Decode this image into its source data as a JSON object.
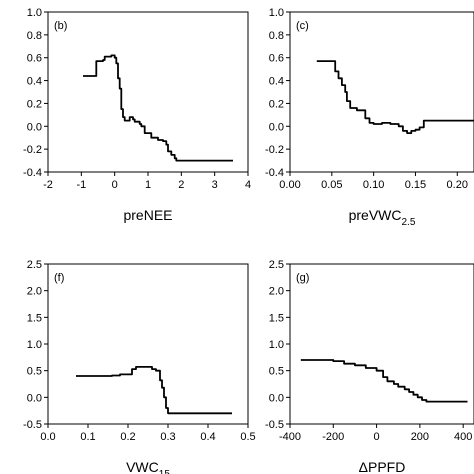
{
  "chart_data": [
    {
      "type": "line",
      "panel_label": "(b)",
      "xlabel": "preNEE",
      "xlabel_sub": "",
      "xlim": [
        -2,
        4
      ],
      "ylim": [
        -0.4,
        1.0
      ],
      "xticks": [
        -2,
        -1,
        0,
        1,
        2,
        3,
        4
      ],
      "xtick_labels": [
        "-2",
        "-1",
        "0",
        "1",
        "2",
        "3",
        "4"
      ],
      "yticks": [
        -0.4,
        -0.2,
        0.0,
        0.2,
        0.4,
        0.6,
        0.8,
        1.0
      ],
      "ytick_labels": [
        "-0.4",
        "-0.2",
        "0.0",
        "0.2",
        "0.4",
        "0.6",
        "0.8",
        "1.0"
      ],
      "x": [
        -0.95,
        -0.55,
        -0.55,
        -0.35,
        -0.3,
        -0.1,
        0.0,
        0.05,
        0.1,
        0.15,
        0.2,
        0.25,
        0.3,
        0.35,
        0.45,
        0.55,
        0.6,
        0.75,
        0.8,
        0.9,
        1.1,
        1.3,
        1.45,
        1.55,
        1.6,
        1.7,
        1.8,
        1.85,
        3.55
      ],
      "y": [
        0.44,
        0.44,
        0.57,
        0.58,
        0.61,
        0.62,
        0.6,
        0.55,
        0.42,
        0.33,
        0.15,
        0.08,
        0.05,
        0.05,
        0.08,
        0.06,
        0.04,
        0.02,
        0.0,
        -0.06,
        -0.1,
        -0.12,
        -0.13,
        -0.16,
        -0.22,
        -0.25,
        -0.28,
        -0.3,
        -0.3
      ]
    },
    {
      "type": "line",
      "panel_label": "(c)",
      "xlabel": "preVWC",
      "xlabel_sub": "2.5",
      "xlim": [
        0.0,
        0.22
      ],
      "ylim": [
        -0.4,
        1.0
      ],
      "xticks": [
        0.0,
        0.05,
        0.1,
        0.15,
        0.2
      ],
      "xtick_labels": [
        "0.00",
        "0.05",
        "0.10",
        "0.15",
        "0.20"
      ],
      "yticks": [
        -0.4,
        -0.2,
        0.0,
        0.2,
        0.4,
        0.6,
        0.8,
        1.0
      ],
      "ytick_labels": [
        "-0.4",
        "-0.2",
        "0.0",
        "0.2",
        "0.4",
        "0.6",
        "0.8",
        "1.0"
      ],
      "x": [
        0.032,
        0.05,
        0.054,
        0.058,
        0.062,
        0.066,
        0.068,
        0.072,
        0.08,
        0.09,
        0.095,
        0.1,
        0.11,
        0.12,
        0.13,
        0.135,
        0.14,
        0.145,
        0.15,
        0.155,
        0.16,
        0.22
      ],
      "y": [
        0.57,
        0.57,
        0.48,
        0.42,
        0.36,
        0.3,
        0.22,
        0.16,
        0.14,
        0.07,
        0.03,
        0.02,
        0.03,
        0.02,
        0.0,
        -0.04,
        -0.06,
        -0.04,
        -0.03,
        -0.01,
        0.05,
        0.05
      ]
    },
    {
      "type": "line",
      "panel_label": "(f)",
      "xlabel": "VWC",
      "xlabel_sub": "15",
      "xlim": [
        0.0,
        0.5
      ],
      "ylim": [
        -0.5,
        2.5
      ],
      "xticks": [
        0.0,
        0.1,
        0.2,
        0.3,
        0.4,
        0.5
      ],
      "xtick_labels": [
        "0.0",
        "0.1",
        "0.2",
        "0.3",
        "0.4",
        "0.5"
      ],
      "yticks": [
        -0.5,
        0.0,
        0.5,
        1.0,
        1.5,
        2.0,
        2.5
      ],
      "ytick_labels": [
        "-0.5",
        "0.0",
        "0.5",
        "1.0",
        "1.5",
        "2.0",
        "2.5"
      ],
      "x": [
        0.07,
        0.16,
        0.18,
        0.2,
        0.21,
        0.22,
        0.25,
        0.26,
        0.27,
        0.28,
        0.285,
        0.29,
        0.295,
        0.3,
        0.46
      ],
      "y": [
        0.4,
        0.41,
        0.43,
        0.43,
        0.53,
        0.57,
        0.57,
        0.53,
        0.5,
        0.32,
        0.18,
        0.0,
        -0.2,
        -0.3,
        -0.3
      ]
    },
    {
      "type": "line",
      "panel_label": "(g)",
      "xlabel": "ΔPPFD",
      "xlabel_sub": "",
      "xlim": [
        -400,
        450
      ],
      "ylim": [
        -0.5,
        2.5
      ],
      "xticks": [
        -400,
        -200,
        0,
        200,
        400
      ],
      "xtick_labels": [
        "-400",
        "-200",
        "0",
        "200",
        "400"
      ],
      "yticks": [
        -0.5,
        0.0,
        0.5,
        1.0,
        1.5,
        2.0,
        2.5
      ],
      "ytick_labels": [
        "-0.5",
        "0.0",
        "0.5",
        "1.0",
        "1.5",
        "2.0",
        "2.5"
      ],
      "x": [
        -350,
        -250,
        -200,
        -150,
        -100,
        -50,
        0,
        30,
        50,
        80,
        100,
        130,
        150,
        170,
        190,
        210,
        230,
        250,
        420
      ],
      "y": [
        0.7,
        0.7,
        0.68,
        0.63,
        0.6,
        0.55,
        0.5,
        0.38,
        0.3,
        0.25,
        0.2,
        0.15,
        0.1,
        0.05,
        0.0,
        -0.05,
        -0.08,
        -0.08,
        -0.08
      ]
    }
  ]
}
